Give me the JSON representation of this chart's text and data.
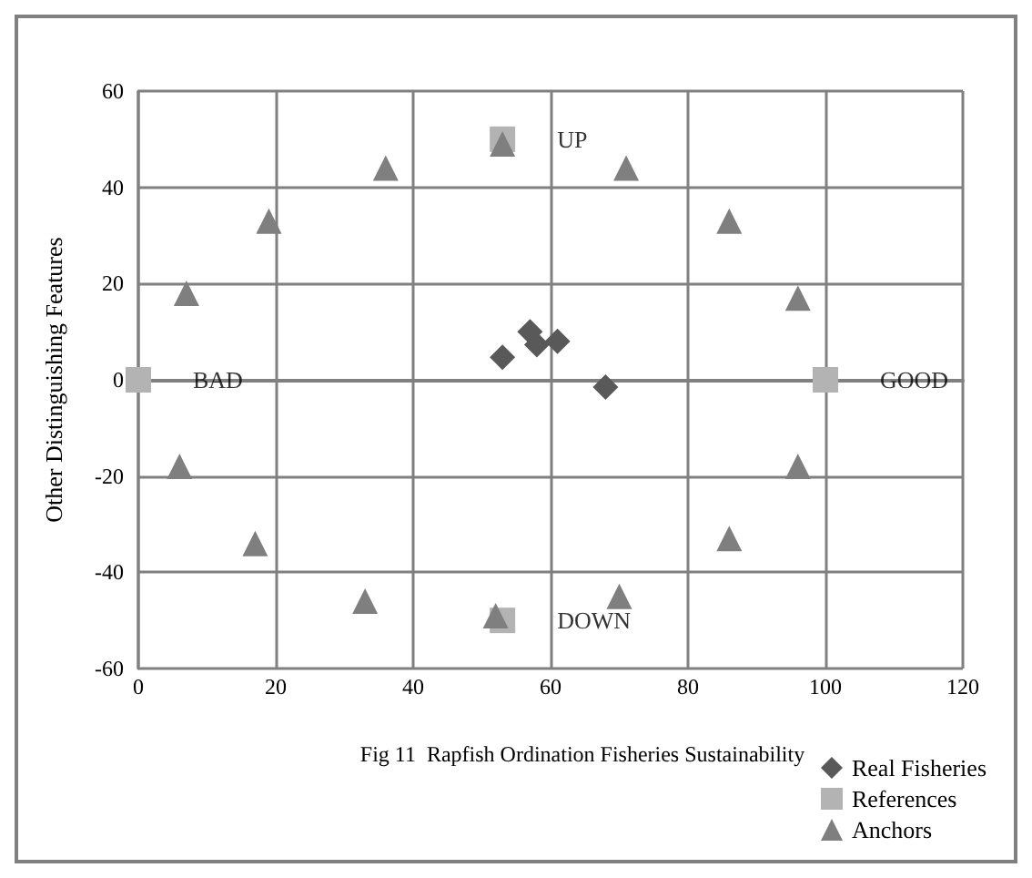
{
  "chart_data": {
    "type": "scatter",
    "title": "Fig 11  Rapfish Ordination Fisheries Sustainability",
    "ylabel": "Other Distinguishing Features",
    "xlim": [
      0,
      120
    ],
    "xticks": [
      0,
      20,
      40,
      60,
      80,
      100,
      120
    ],
    "ylim": [
      -60,
      60
    ],
    "yticks": [
      -60,
      -40,
      -20,
      0,
      20,
      40,
      60
    ],
    "grid": true,
    "legend": "bottom right",
    "series": [
      {
        "name": "Real Fisheries",
        "color": "#595959",
        "marker": "diamond",
        "x": [
          53,
          57,
          58,
          61,
          68
        ],
        "values": [
          4.7,
          10,
          7.3,
          8,
          -1.5
        ]
      },
      {
        "name": "References",
        "color": "#b3b3b3",
        "marker": "square",
        "x": [
          0,
          53,
          100,
          53
        ],
        "values": [
          0,
          50,
          0,
          -50
        ]
      },
      {
        "name": "Anchors",
        "color": "#7f7f7f",
        "marker": "triangle",
        "x": [
          7,
          19,
          36,
          53,
          71,
          86,
          96,
          6,
          17,
          33,
          52,
          70,
          86,
          96
        ],
        "values": [
          18,
          33,
          44,
          49,
          44,
          33,
          17,
          -18,
          -34,
          -46,
          -49,
          -45,
          -33,
          -18
        ]
      }
    ],
    "annotations": [
      {
        "text": "UP",
        "x": 53,
        "y": 50
      },
      {
        "text": "BAD",
        "x": 0,
        "y": 0
      },
      {
        "text": "GOOD",
        "x": 100,
        "y": 0
      },
      {
        "text": "DOWN",
        "x": 53,
        "y": -50
      }
    ]
  }
}
